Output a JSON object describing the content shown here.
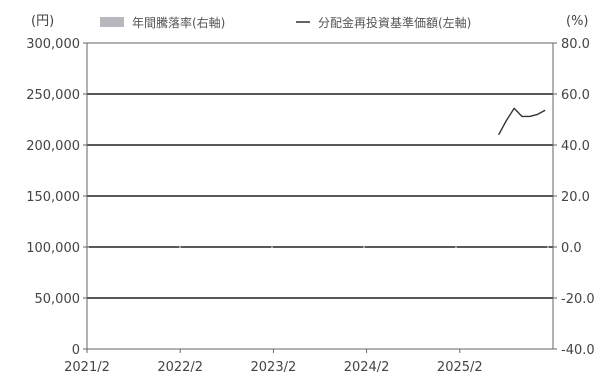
{
  "chart_data": {
    "type": "line",
    "left_axis_unit": "(円)",
    "right_axis_unit": "(%)",
    "legend": [
      {
        "kind": "bar",
        "label": "年間騰落率(右軸)",
        "color": "#b7b7bd"
      },
      {
        "kind": "line",
        "label": "分配金再投資基準価額(左軸)",
        "color": "#333333"
      }
    ],
    "left_ylim": [
      0,
      300000
    ],
    "left_ticks": [
      "300,000",
      "250,000",
      "200,000",
      "150,000",
      "100,000",
      "50,000",
      "0"
    ],
    "left_tick_values": [
      300000,
      250000,
      200000,
      150000,
      100000,
      50000,
      0
    ],
    "right_ylim": [
      -40,
      80
    ],
    "right_ticks": [
      "80.0",
      "60.0",
      "40.0",
      "20.0",
      "0.0",
      "-20.0",
      "-40.0"
    ],
    "right_tick_values": [
      80,
      60,
      40,
      20,
      0,
      -20,
      -40
    ],
    "x_ticks": [
      "2021/2",
      "2022/2",
      "2023/2",
      "2024/2",
      "2025/2"
    ],
    "x_range": [
      "2021/2",
      "2026/2"
    ],
    "grid": true,
    "series": [
      {
        "label": "分配金再投資基準価額(左軸)",
        "x": [
          "2025/7",
          "2025/8",
          "2025/9",
          "2025/10",
          "2025/11",
          "2025/12",
          "2026/1"
        ],
        "values": [
          210000,
          224000,
          236000,
          228000,
          228000,
          230000,
          234000
        ]
      }
    ],
    "bar_values": []
  }
}
